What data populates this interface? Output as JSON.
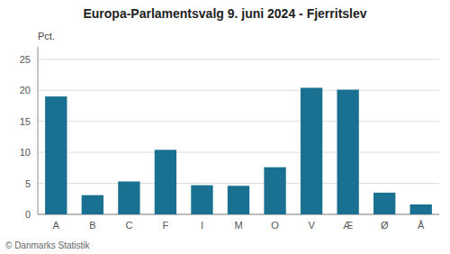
{
  "chart_data": {
    "type": "bar",
    "title": "Europa-Parlamentsvalg 9. juni 2024 - Fjerritslev",
    "ylabel": "Pct.",
    "annotations": [
      "© Danmarks Statistik"
    ],
    "categories": [
      "A",
      "B",
      "C",
      "F",
      "I",
      "M",
      "O",
      "V",
      "Æ",
      "Ø",
      "Å"
    ],
    "values": [
      19.0,
      3.1,
      5.3,
      10.4,
      4.7,
      4.6,
      7.6,
      20.4,
      20.1,
      3.5,
      1.6
    ],
    "color": "#1a7090",
    "ylim": [
      0,
      27
    ],
    "yticks": [
      0,
      5,
      10,
      15,
      20,
      25
    ],
    "grid": true
  }
}
